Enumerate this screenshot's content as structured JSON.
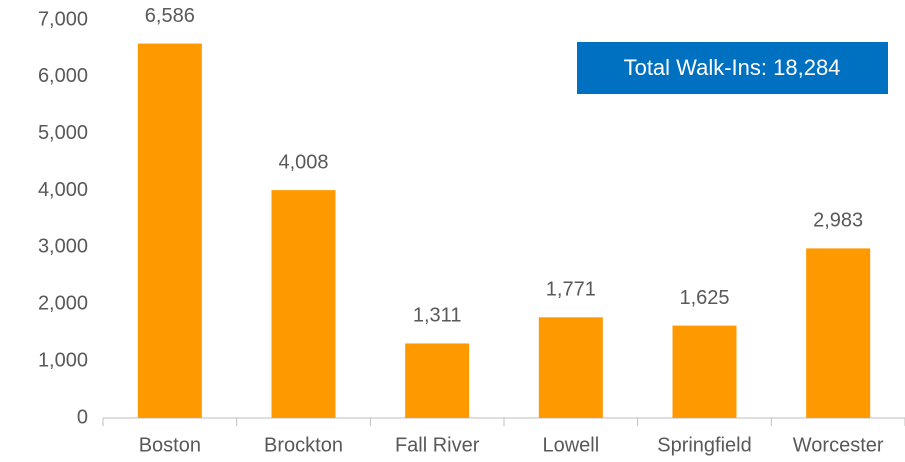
{
  "chart_data": {
    "type": "bar",
    "annotation": "Total Walk-Ins: 18,284",
    "categories": [
      "Boston",
      "Brockton",
      "Fall River",
      "Lowell",
      "Springfield",
      "Worcester"
    ],
    "values": [
      6586,
      4008,
      1311,
      1771,
      1625,
      2983
    ],
    "value_labels": [
      "6,586",
      "4,008",
      "1,311",
      "1,771",
      "1,625",
      "2,983"
    ],
    "color": "#ff9900",
    "ylim": [
      0,
      7000
    ],
    "yticks": [
      0,
      {
        "value": 1000,
        "label": "1,000"
      },
      {
        "value": 2000,
        "label": "2,000"
      },
      {
        "value": 3000,
        "label": "3,000"
      },
      {
        "value": 4000,
        "label": "4,000"
      },
      {
        "value": 5000,
        "label": "5,000"
      },
      {
        "value": 6000,
        "label": "6,000"
      },
      {
        "value": 7000,
        "label": "7,000"
      }
    ],
    "grid": false
  }
}
